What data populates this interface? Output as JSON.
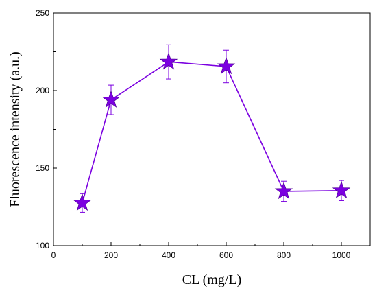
{
  "chart_data": {
    "type": "line",
    "title": "",
    "xlabel": "CL (mg/L)",
    "ylabel": "Fluorescence  intensity (a.u.)",
    "xlim": [
      0,
      1100
    ],
    "ylim": [
      100,
      250
    ],
    "xticks": [
      0,
      200,
      400,
      600,
      800,
      1000
    ],
    "yticks": [
      100,
      150,
      200,
      250
    ],
    "grid": false,
    "marker": "star",
    "color": "#7B00E0",
    "series": [
      {
        "x": [
          100,
          200,
          400,
          600,
          800,
          1000
        ],
        "y": [
          127.5,
          194,
          218.5,
          215.5,
          135,
          135.5
        ],
        "error": [
          6,
          9.5,
          11,
          10.5,
          6.5,
          6.5
        ]
      }
    ]
  }
}
